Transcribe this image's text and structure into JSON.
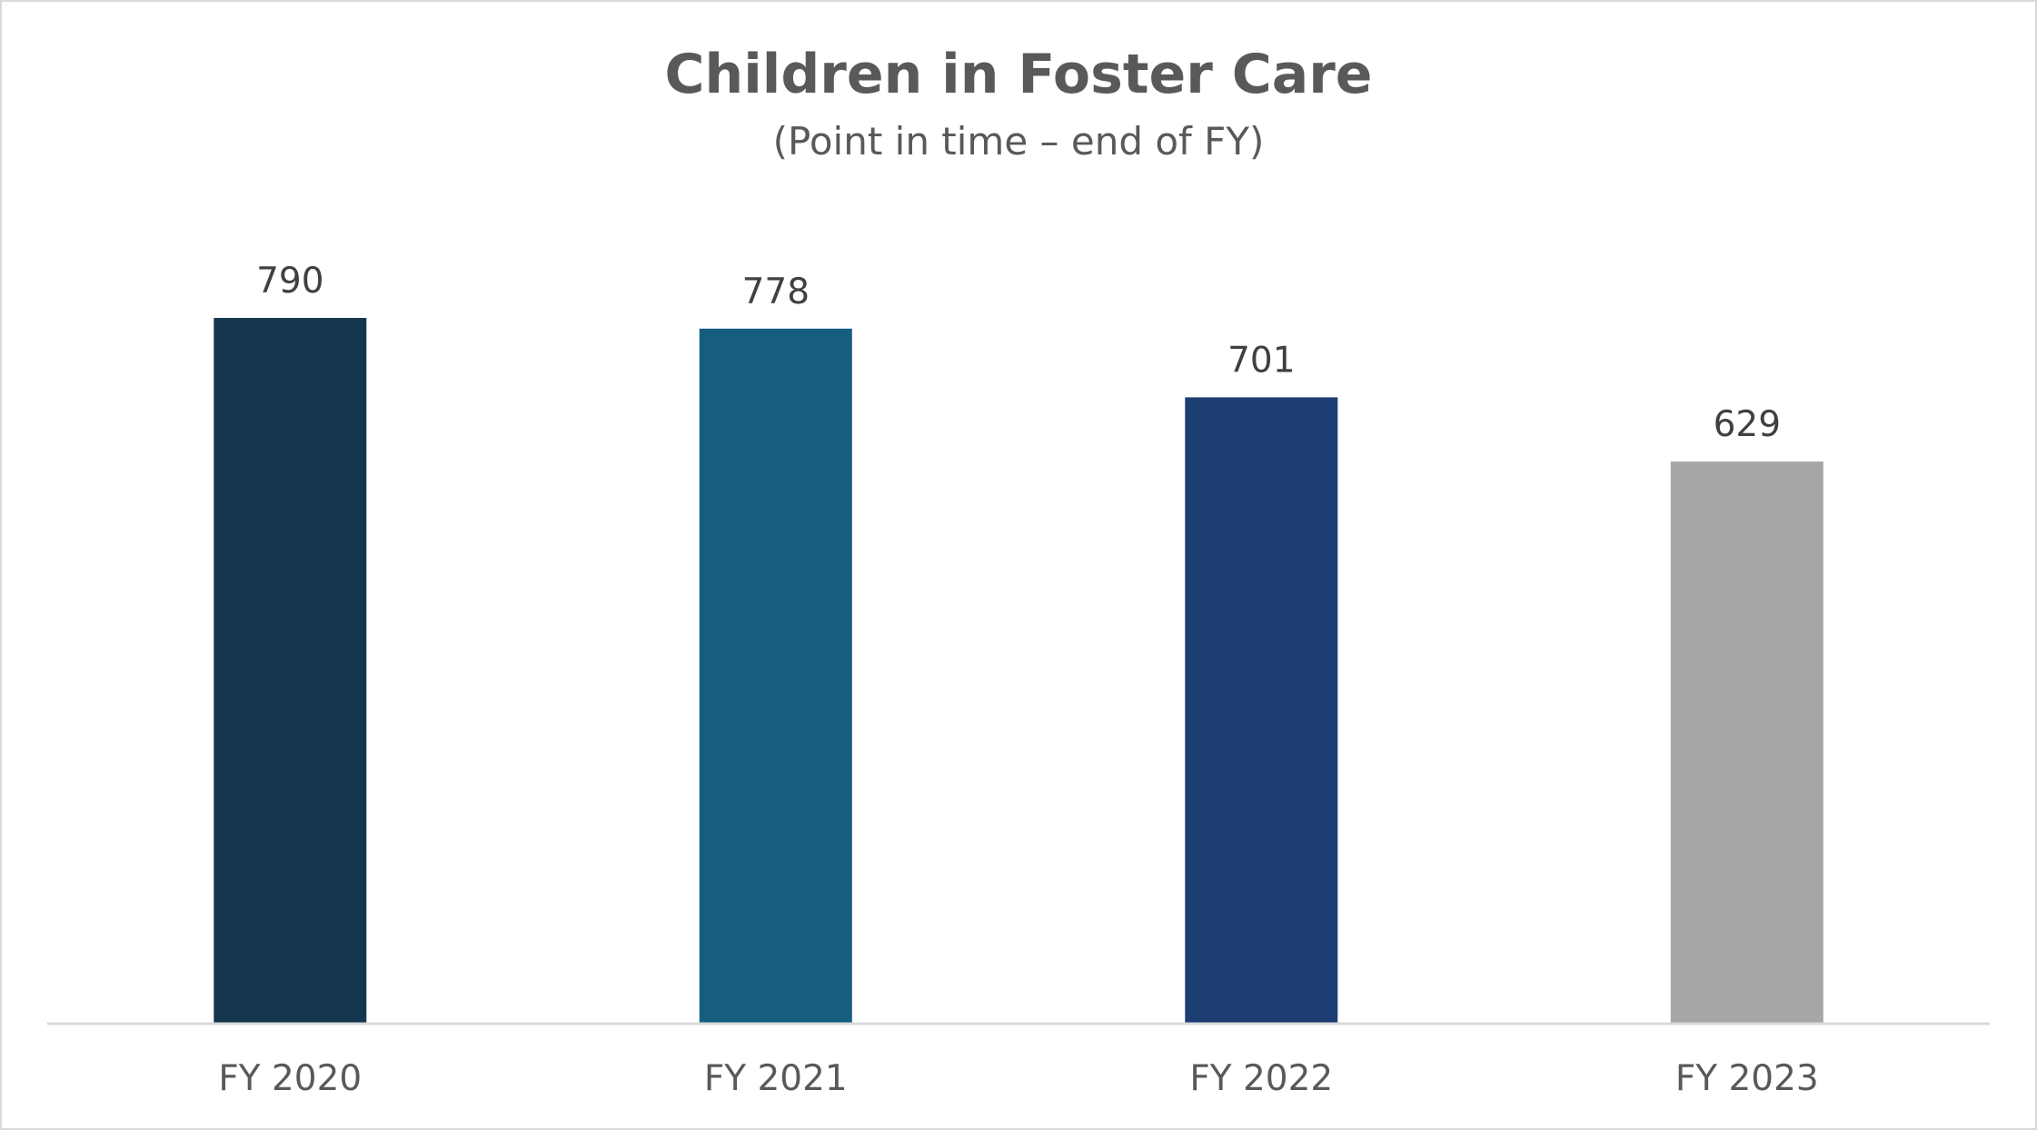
{
  "chart_data": {
    "type": "bar",
    "title": "Children in Foster Care",
    "subtitle": "(Point in time – end of FY)",
    "categories": [
      "FY 2020",
      "FY 2021",
      "FY 2022",
      "FY 2023"
    ],
    "values": [
      790,
      778,
      701,
      629
    ],
    "data_labels": [
      "790",
      "778",
      "701",
      "629"
    ],
    "bar_colors": [
      "#14374f",
      "#155e80",
      "#1d3e73",
      "#a6a6a6"
    ],
    "ylim": [
      0,
      790
    ],
    "xlabel": "",
    "ylabel": "",
    "grid": false,
    "legend": "none"
  }
}
